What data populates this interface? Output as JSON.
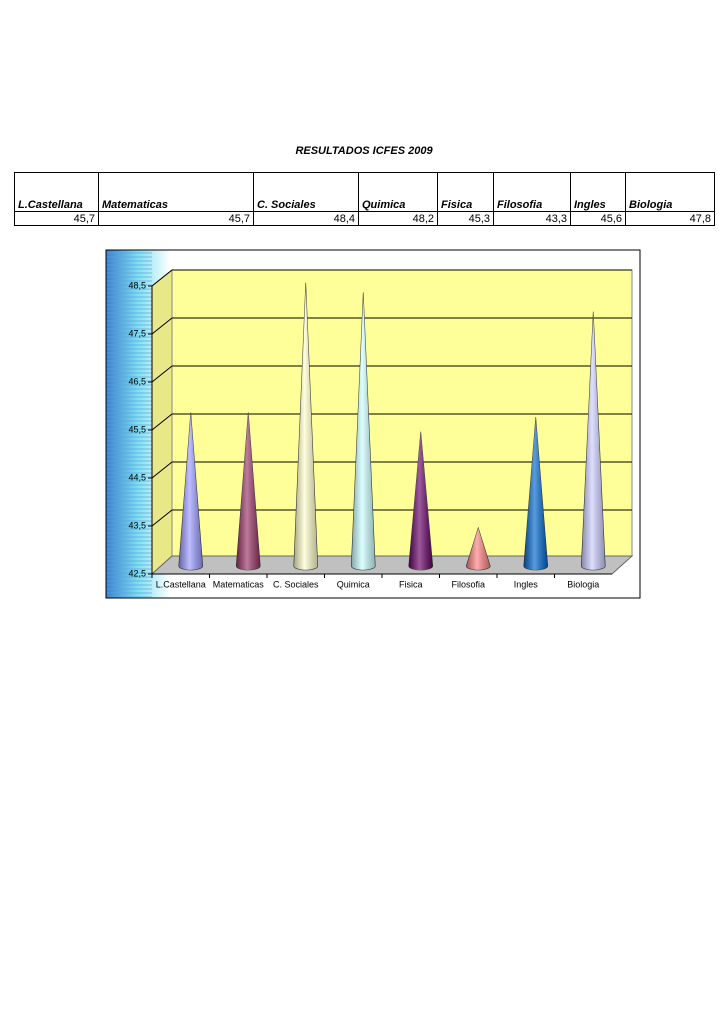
{
  "header": {
    "title": "RESULTADOS ICFES 2009"
  },
  "table": {
    "headers": [
      "L.Castellana",
      "Matematicas",
      "C. Sociales",
      "Quimica",
      "Fisica",
      "Filosofia",
      "Ingles",
      "Biologia"
    ],
    "rows": [
      [
        "45,7",
        "45,7",
        "48,4",
        "48,2",
        "45,3",
        "43,3",
        "45,6",
        "47,8"
      ]
    ]
  },
  "chart_data": {
    "type": "cone",
    "categories": [
      "L.Castellana",
      "Matematicas",
      "C. Sociales",
      "Quimica",
      "Fisica",
      "Filosofia",
      "Ingles",
      "Biologia"
    ],
    "values": [
      45.7,
      45.7,
      48.4,
      48.2,
      45.3,
      43.3,
      45.6,
      47.8
    ],
    "colors": [
      "#9999ff",
      "#993366",
      "#ffffcc",
      "#ccffff",
      "#660066",
      "#ff8080",
      "#0066cc",
      "#ccccff"
    ],
    "ylim": [
      42.5,
      48.5
    ],
    "yticks": [
      {
        "value": 42.5,
        "label": "42,5"
      },
      {
        "value": 43.5,
        "label": "43,5"
      },
      {
        "value": 44.5,
        "label": "44,5"
      },
      {
        "value": 45.5,
        "label": "45,5"
      },
      {
        "value": 46.5,
        "label": "46,5"
      },
      {
        "value": 47.5,
        "label": "47,5"
      },
      {
        "value": 48.5,
        "label": "48,5"
      }
    ],
    "grid": true
  }
}
